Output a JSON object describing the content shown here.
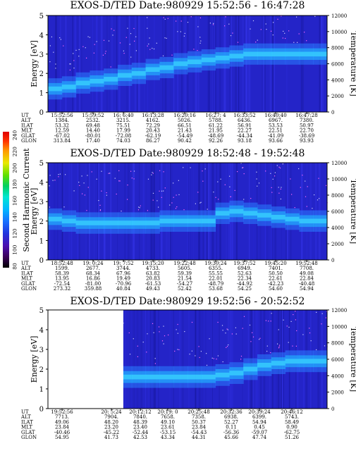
{
  "colorbar": {
    "title": "Second Harmonic Current",
    "ticks": [
      "240",
      "220",
      "200",
      "180",
      "160",
      "140",
      "120",
      "100",
      "80"
    ],
    "colors": [
      "#000000",
      "#3a005a",
      "#4b0fb0",
      "#2233dd",
      "#1870ff",
      "#00b8ff",
      "#00e6d2",
      "#00d060",
      "#60e000",
      "#e8e800",
      "#ff9900",
      "#ff3300",
      "#e00000"
    ]
  },
  "chart_data": [
    {
      "type": "heatmap",
      "title": "EXOS-D/TED   Date:980929   15:52:56 - 16:47:28",
      "ylabel": "Energy [eV]",
      "ylabel_right": "Temperature [K]",
      "yticks_left": [
        "0",
        "1",
        "2",
        "3",
        "4",
        "5"
      ],
      "yticks_right": [
        "0",
        "2000",
        "4000",
        "6000",
        "8000",
        "10000",
        "12000"
      ],
      "ylim": [
        0,
        5
      ],
      "ylim_right": [
        0,
        12000
      ],
      "orbit_labels": [
        "UT",
        "ALT",
        "ILAT",
        "MLT",
        "GLAT",
        "GLON"
      ],
      "orbit_columns": [
        [
          "15:52:56",
          "1384.",
          "53.32",
          "12.59",
          "-67.02",
          "313.84"
        ],
        [
          "15:59:52",
          "2532.",
          "69.48",
          "14.40",
          "-80.01",
          "17.40"
        ],
        [
          "16: 6:40",
          "3215.",
          "75.51",
          "17.99",
          "-72.08",
          "74.03"
        ],
        [
          "16:13:28",
          "4162.",
          "72.29",
          "20.43",
          "-62.19",
          "86.27"
        ],
        [
          "16:20:16",
          "5026.",
          "66.51",
          "21.43",
          "-54.49",
          "90.42"
        ],
        [
          "16:27: 4",
          "5788.",
          "61.22",
          "21.95",
          "-48.69",
          "92.26"
        ],
        [
          "16:33:52",
          "6436.",
          "56.91",
          "22.27",
          "-44.34",
          "93.18"
        ],
        [
          "16:40:40",
          "6967.",
          "53.53",
          "22.51",
          "-41.09",
          "93.66"
        ],
        [
          "16:47:28",
          "7380.",
          "50.97",
          "22.70",
          "-38.69",
          "93.93"
        ]
      ],
      "heat_band_center_ev": [
        1.2,
        1.3,
        1.5,
        1.6,
        1.7,
        1.9,
        2.0,
        2.2,
        2.3,
        2.5,
        2.6,
        2.7,
        2.8,
        2.9,
        3.0,
        3.0,
        3.0,
        3.0,
        3.0,
        3.0,
        3.0
      ],
      "gap": null
    },
    {
      "type": "heatmap",
      "title": "EXOS-D/TED   Date:980929   18:52:48 - 19:52:48",
      "ylabel": "Energy [eV]",
      "ylabel_right": "Temperature [K]",
      "yticks_left": [
        "0",
        "1",
        "2",
        "3",
        "4",
        "5"
      ],
      "yticks_right": [
        "0",
        "2000",
        "4000",
        "6000",
        "8000",
        "10000",
        "12000"
      ],
      "ylim": [
        0,
        5
      ],
      "ylim_right": [
        0,
        12000
      ],
      "orbit_labels": [
        "UT",
        "ALT",
        "ILAT",
        "MLT",
        "GLAT",
        "GLON"
      ],
      "orbit_columns": [
        [
          "18:52:48",
          "1599.",
          "58.39",
          "13.95",
          "-72.54",
          "273.32"
        ],
        [
          "19: 0:24",
          "2677.",
          "68.34",
          "16.86",
          "-81.00",
          "359.88"
        ],
        [
          "19: 7:52",
          "3744.",
          "67.96",
          "19.49",
          "-70.96",
          "40.84"
        ],
        [
          "19:15:20",
          "4733.",
          "63.82",
          "20.83",
          "-61.53",
          "49.43"
        ],
        [
          "19:22:48",
          "5605.",
          "59.39",
          "21.54",
          "-54.27",
          "52.42"
        ],
        [
          "19:30:24",
          "6355.",
          "55.55",
          "22.01",
          "-48.79",
          "53.68"
        ],
        [
          "19:37:52",
          "6949.",
          "52.63",
          "22.34",
          "-44.92",
          "54.25"
        ],
        [
          "19:45:20",
          "7401.",
          "50.50",
          "22.61",
          "-42.23",
          "54.60"
        ],
        [
          "19:52:48",
          "7708.",
          "49.08",
          "22.84",
          "-40.48",
          "54.94"
        ]
      ],
      "heat_band_center_ev": [
        2.1,
        2.0,
        1.9,
        1.9,
        1.9,
        1.9,
        1.9,
        1.9,
        2.0,
        2.0,
        2.0,
        2.0,
        2.4,
        2.5,
        2.4,
        2.3,
        2.2,
        2.1,
        2.0,
        2.0,
        2.0
      ],
      "gap": null
    },
    {
      "type": "heatmap",
      "title": "EXOS-D/TED   Date:980929   19:52:56 - 20:52:52",
      "ylabel": "Energy [eV]",
      "ylabel_right": "Temperature [K]",
      "yticks_left": [
        "0",
        "1",
        "2",
        "3",
        "4",
        "5"
      ],
      "yticks_right": [
        "0",
        "2000",
        "4000",
        "6000",
        "8000",
        "10000",
        "12000"
      ],
      "ylim": [
        0,
        5
      ],
      "ylim_right": [
        0,
        12000
      ],
      "orbit_labels": [
        "UT",
        "ALT",
        "ILAT",
        "MLT",
        "GLAT",
        "GLON"
      ],
      "orbit_columns": [
        [
          "19:52:56",
          "7713.",
          "49.06",
          "23.84",
          "-40.46",
          "54.95"
        ],
        [
          "20: 5:24",
          "7904.",
          "48.20",
          "23.20",
          "-45.22",
          "41.73"
        ],
        [
          "20:12:12",
          "7840.",
          "48.39",
          "23.40",
          "-52.44",
          "42.53"
        ],
        [
          "20:19: 0",
          "7658.",
          "49.10",
          "23.61",
          "-53.15",
          "43.34"
        ],
        [
          "20:25:48",
          "7358.",
          "50.37",
          "23.84",
          "-54.43",
          "44.31"
        ],
        [
          "20:32:36",
          "6938.",
          "52.27",
          "0.11",
          "-56.36",
          "45.66"
        ],
        [
          "20:39:24",
          "6399.",
          "54.94",
          "0.45",
          "-59.07",
          "47.74"
        ],
        [
          "20:46:12",
          "5743.",
          "58.49",
          "0.90",
          "-62.75",
          "51.26"
        ]
      ],
      "heat_band_center_ev": [
        1.6,
        1.6,
        1.6,
        1.6,
        1.6,
        1.6,
        1.6,
        1.6,
        1.6,
        1.6,
        1.6,
        1.6,
        1.7,
        1.8,
        2.0,
        2.2,
        2.3,
        2.4,
        2.4,
        2.4,
        2.4
      ],
      "gap": [
        0.0,
        0.27
      ]
    }
  ]
}
